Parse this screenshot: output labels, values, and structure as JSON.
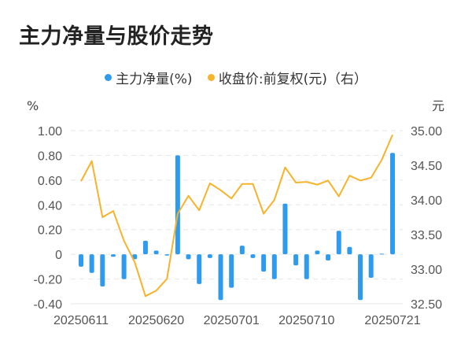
{
  "title": "主力净量与股价走势",
  "legend": [
    {
      "label": "主力净量(%)",
      "color": "#2f9bef"
    },
    {
      "label": "收盘价:前复权(元)（右）",
      "color": "#f7b32b"
    }
  ],
  "axes": {
    "left_unit": "%",
    "right_unit": "元",
    "left_ticks": [
      "1.00",
      "0.80",
      "0.60",
      "0.40",
      "0.20",
      "0",
      "-0.20",
      "-0.40"
    ],
    "right_ticks": [
      "35.00",
      "34.50",
      "34.00",
      "33.50",
      "33.00",
      "32.50"
    ],
    "x_ticks": [
      "20250611",
      "20250620",
      "20250701",
      "20250710",
      "20250721"
    ]
  },
  "chart_data": {
    "type": "bar+line",
    "title": "主力净量与股价走势",
    "xlabel": "",
    "ylabel_left": "%",
    "ylabel_right": "元",
    "ylim_left": [
      -0.4,
      1.0
    ],
    "ylim_right": [
      32.5,
      35.0
    ],
    "grid": true,
    "legend_position": "top",
    "x_tick_labels": [
      "20250611",
      "20250620",
      "20250701",
      "20250710",
      "20250721"
    ],
    "x_tick_indices": [
      0,
      7,
      14,
      21,
      29
    ],
    "series": [
      {
        "name": "主力净量(%)",
        "type": "bar",
        "axis": "left",
        "color": "#2f9bef",
        "values": [
          -0.1,
          -0.15,
          -0.26,
          -0.02,
          -0.2,
          -0.04,
          0.11,
          0.03,
          -0.01,
          0.8,
          -0.04,
          -0.24,
          -0.03,
          -0.37,
          -0.27,
          0.07,
          -0.03,
          -0.14,
          -0.2,
          0.41,
          -0.09,
          -0.2,
          0.03,
          -0.05,
          0.19,
          0.06,
          -0.37,
          -0.19,
          0.005,
          0.82
        ]
      },
      {
        "name": "收盘价:前复权(元)（右）",
        "type": "line",
        "axis": "right",
        "color": "#f7b32b",
        "values": [
          34.27,
          34.56,
          33.75,
          33.84,
          33.41,
          33.1,
          32.61,
          32.69,
          32.86,
          33.8,
          34.06,
          33.85,
          34.24,
          34.14,
          34.02,
          34.23,
          34.23,
          33.8,
          34.0,
          34.47,
          34.25,
          34.26,
          34.22,
          34.28,
          34.05,
          34.35,
          34.28,
          34.32,
          34.58,
          34.94
        ]
      }
    ]
  }
}
